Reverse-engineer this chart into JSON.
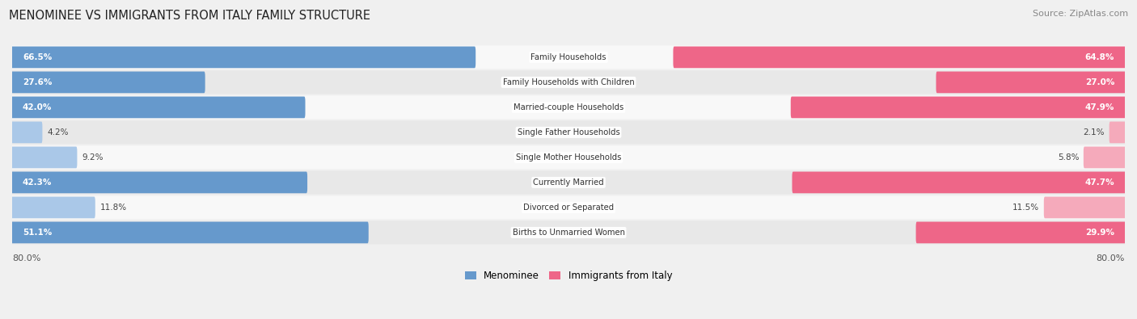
{
  "title": "MENOMINEE VS IMMIGRANTS FROM ITALY FAMILY STRUCTURE",
  "source": "Source: ZipAtlas.com",
  "categories": [
    "Family Households",
    "Family Households with Children",
    "Married-couple Households",
    "Single Father Households",
    "Single Mother Households",
    "Currently Married",
    "Divorced or Separated",
    "Births to Unmarried Women"
  ],
  "menominee_values": [
    66.5,
    27.6,
    42.0,
    4.2,
    9.2,
    42.3,
    11.8,
    51.1
  ],
  "italy_values": [
    64.8,
    27.0,
    47.9,
    2.1,
    5.8,
    47.7,
    11.5,
    29.9
  ],
  "x_max": 80.0,
  "menominee_color_strong": "#6699cc",
  "menominee_color_light": "#aac8e8",
  "italy_color_strong": "#ee6688",
  "italy_color_light": "#f5aabb",
  "bg_color": "#f0f0f0",
  "row_bg_even": "#e8e8e8",
  "row_bg_odd": "#f8f8f8",
  "title_color": "#222222",
  "value_color_inside": "#ffffff",
  "value_color_outside": "#444444",
  "threshold_strong": 20.0,
  "legend_menominee": "Menominee",
  "legend_italy": "Immigrants from Italy"
}
